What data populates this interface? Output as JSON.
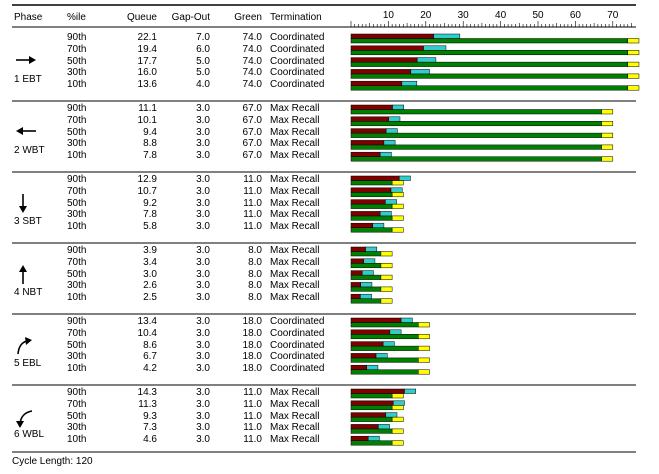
{
  "headers": {
    "phase": "Phase",
    "pctile": "%ile",
    "queue": "Queue",
    "gapout": "Gap-Out",
    "green": "Green",
    "termination": "Termination"
  },
  "axis_ticks": [
    "10",
    "20",
    "30",
    "40",
    "50",
    "60",
    "70"
  ],
  "footer": "Cycle Length: 120",
  "colors": {
    "queue": "#800000",
    "gapout": "#33cccc",
    "green": "#008000",
    "yellow": "#ffff00"
  },
  "chart_data": {
    "type": "bar",
    "title": "",
    "xlabel": "",
    "ylabel": "",
    "xlim": [
      0,
      75
    ],
    "xticks": [
      10,
      20,
      30,
      40,
      50,
      60,
      70
    ],
    "series_names": [
      "Queue",
      "Gap-Out",
      "Green",
      "Yellow"
    ],
    "phases": [
      {
        "label": "1 EBT",
        "arrow": "arrow-right",
        "rows": [
          {
            "pctile": "90th",
            "queue": "22.1",
            "gapout": "7.0",
            "green": "74.0",
            "termination": "Coordinated"
          },
          {
            "pctile": "70th",
            "queue": "19.4",
            "gapout": "6.0",
            "green": "74.0",
            "termination": "Coordinated"
          },
          {
            "pctile": "50th",
            "queue": "17.7",
            "gapout": "5.0",
            "green": "74.0",
            "termination": "Coordinated"
          },
          {
            "pctile": "30th",
            "queue": "16.0",
            "gapout": "5.0",
            "green": "74.0",
            "termination": "Coordinated"
          },
          {
            "pctile": "10th",
            "queue": "13.6",
            "gapout": "4.0",
            "green": "74.0",
            "termination": "Coordinated"
          }
        ]
      },
      {
        "label": "2 WBT",
        "arrow": "arrow-left",
        "rows": [
          {
            "pctile": "90th",
            "queue": "11.1",
            "gapout": "3.0",
            "green": "67.0",
            "termination": "Max Recall"
          },
          {
            "pctile": "70th",
            "queue": "10.1",
            "gapout": "3.0",
            "green": "67.0",
            "termination": "Max Recall"
          },
          {
            "pctile": "50th",
            "queue": "9.4",
            "gapout": "3.0",
            "green": "67.0",
            "termination": "Max Recall"
          },
          {
            "pctile": "30th",
            "queue": "8.8",
            "gapout": "3.0",
            "green": "67.0",
            "termination": "Max Recall"
          },
          {
            "pctile": "10th",
            "queue": "7.8",
            "gapout": "3.0",
            "green": "67.0",
            "termination": "Max Recall"
          }
        ]
      },
      {
        "label": "3 SBT",
        "arrow": "arrow-down",
        "rows": [
          {
            "pctile": "90th",
            "queue": "12.9",
            "gapout": "3.0",
            "green": "11.0",
            "termination": "Max Recall"
          },
          {
            "pctile": "70th",
            "queue": "10.7",
            "gapout": "3.0",
            "green": "11.0",
            "termination": "Max Recall"
          },
          {
            "pctile": "50th",
            "queue": "9.2",
            "gapout": "3.0",
            "green": "11.0",
            "termination": "Max Recall"
          },
          {
            "pctile": "30th",
            "queue": "7.8",
            "gapout": "3.0",
            "green": "11.0",
            "termination": "Max Recall"
          },
          {
            "pctile": "10th",
            "queue": "5.8",
            "gapout": "3.0",
            "green": "11.0",
            "termination": "Max Recall"
          }
        ]
      },
      {
        "label": "4 NBT",
        "arrow": "arrow-up",
        "rows": [
          {
            "pctile": "90th",
            "queue": "3.9",
            "gapout": "3.0",
            "green": "8.0",
            "termination": "Max Recall"
          },
          {
            "pctile": "70th",
            "queue": "3.4",
            "gapout": "3.0",
            "green": "8.0",
            "termination": "Max Recall"
          },
          {
            "pctile": "50th",
            "queue": "3.0",
            "gapout": "3.0",
            "green": "8.0",
            "termination": "Max Recall"
          },
          {
            "pctile": "30th",
            "queue": "2.6",
            "gapout": "3.0",
            "green": "8.0",
            "termination": "Max Recall"
          },
          {
            "pctile": "10th",
            "queue": "2.5",
            "gapout": "3.0",
            "green": "8.0",
            "termination": "Max Recall"
          }
        ]
      },
      {
        "label": "5 EBL",
        "arrow": "arrow-curve-right",
        "rows": [
          {
            "pctile": "90th",
            "queue": "13.4",
            "gapout": "3.0",
            "green": "18.0",
            "termination": "Coordinated"
          },
          {
            "pctile": "70th",
            "queue": "10.4",
            "gapout": "3.0",
            "green": "18.0",
            "termination": "Coordinated"
          },
          {
            "pctile": "50th",
            "queue": "8.6",
            "gapout": "3.0",
            "green": "18.0",
            "termination": "Coordinated"
          },
          {
            "pctile": "30th",
            "queue": "6.7",
            "gapout": "3.0",
            "green": "18.0",
            "termination": "Coordinated"
          },
          {
            "pctile": "10th",
            "queue": "4.2",
            "gapout": "3.0",
            "green": "18.0",
            "termination": "Coordinated"
          }
        ]
      },
      {
        "label": "6 WBL",
        "arrow": "arrow-curve-left",
        "rows": [
          {
            "pctile": "90th",
            "queue": "14.3",
            "gapout": "3.0",
            "green": "11.0",
            "termination": "Max Recall"
          },
          {
            "pctile": "70th",
            "queue": "11.3",
            "gapout": "3.0",
            "green": "11.0",
            "termination": "Max Recall"
          },
          {
            "pctile": "50th",
            "queue": "9.3",
            "gapout": "3.0",
            "green": "11.0",
            "termination": "Max Recall"
          },
          {
            "pctile": "30th",
            "queue": "7.3",
            "gapout": "3.0",
            "green": "11.0",
            "termination": "Max Recall"
          },
          {
            "pctile": "10th",
            "queue": "4.6",
            "gapout": "3.0",
            "green": "11.0",
            "termination": "Max Recall"
          }
        ]
      }
    ]
  }
}
